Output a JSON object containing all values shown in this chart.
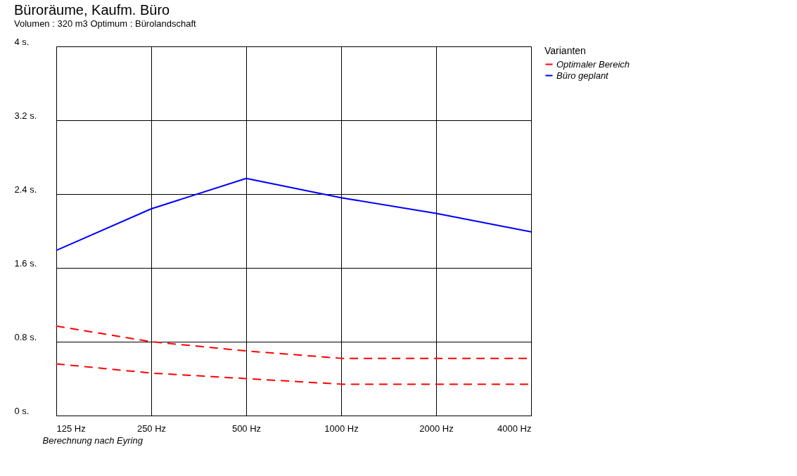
{
  "chart_data": {
    "type": "line",
    "title": "Büroräume, Kaufm. Büro",
    "subtitle": "Volumen :  320 m3    Optimum : Bürolandschaft",
    "legend_title": "Varianten",
    "categories": [
      "125 Hz",
      "250 Hz",
      "500 Hz",
      "1000 Hz",
      "2000 Hz",
      "4000 Hz"
    ],
    "ylim": [
      0,
      4
    ],
    "yticks": [
      {
        "value": 0,
        "label": "0 s."
      },
      {
        "value": 0.8,
        "label": "0.8 s."
      },
      {
        "value": 1.6,
        "label": "1.6 s."
      },
      {
        "value": 2.4,
        "label": "2.4 s."
      },
      {
        "value": 3.2,
        "label": "3.2 s."
      },
      {
        "value": 4,
        "label": "4 s."
      }
    ],
    "series": [
      {
        "name": "Optimaler Bereich",
        "color": "#ff0000",
        "line_style": "dashed",
        "values": [
          0.97,
          0.8,
          0.7,
          0.62,
          0.62,
          0.62
        ]
      },
      {
        "color": "#ff0000",
        "line_style": "dashed",
        "values": [
          0.56,
          0.46,
          0.4,
          0.34,
          0.34,
          0.34
        ]
      },
      {
        "name": "Büro geplant",
        "color": "#0000ff",
        "line_style": "solid",
        "values": [
          1.79,
          2.24,
          2.57,
          2.36,
          2.19,
          1.99
        ]
      }
    ],
    "grid": true,
    "legend": "top right",
    "annotations": [
      "Berechnung nach Eyring"
    ]
  }
}
